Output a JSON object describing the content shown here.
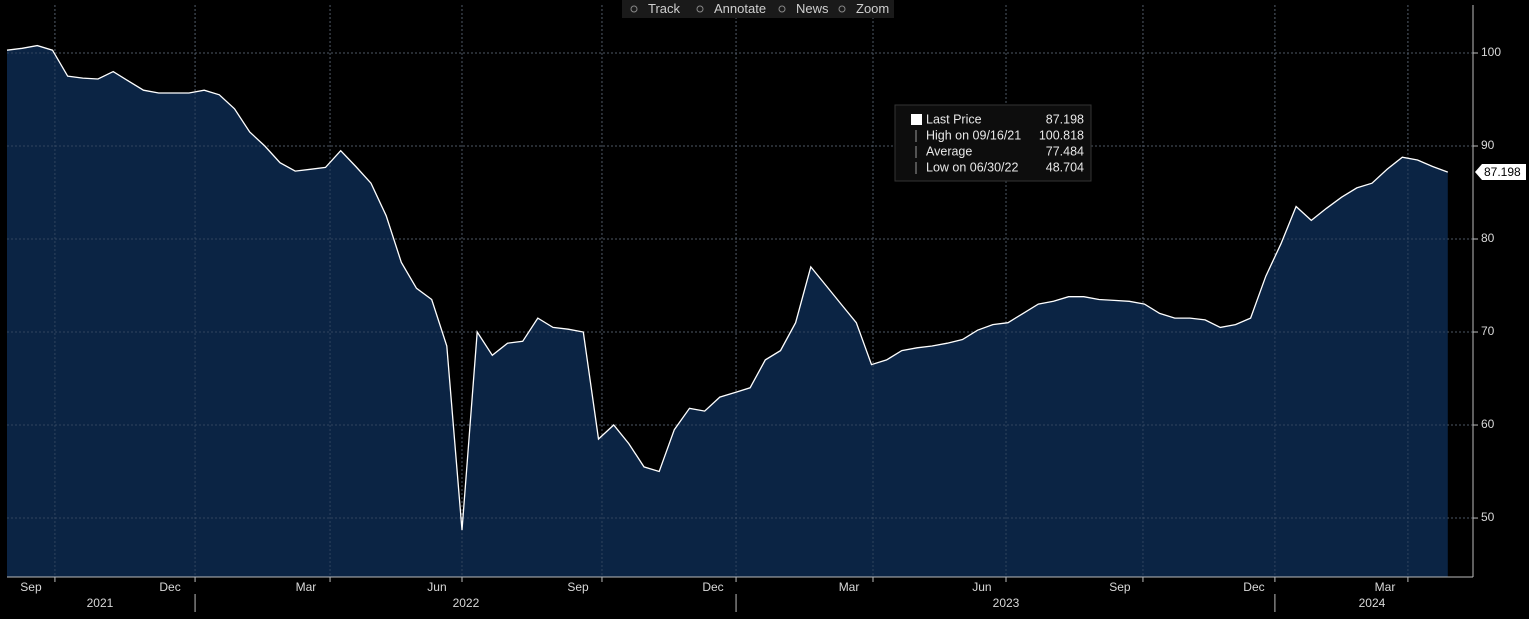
{
  "toolbar": [
    "Track",
    "Annotate",
    "News",
    "Zoom"
  ],
  "chart_data": {
    "type": "area",
    "series": [
      {
        "name": "Last Price",
        "color": "#ffffff",
        "fill": "#0b2444",
        "values": [
          100.3,
          100.5,
          100.8,
          100.3,
          97.5,
          97.3,
          97.2,
          98.0,
          97.0,
          96.0,
          95.7,
          95.7,
          95.7,
          96.0,
          95.5,
          94.0,
          91.5,
          90.0,
          88.2,
          87.3,
          87.5,
          87.7,
          89.5,
          87.8,
          86.0,
          82.5,
          77.5,
          74.7,
          73.5,
          68.5,
          48.7,
          70.0,
          67.5,
          68.8,
          69.0,
          71.5,
          70.5,
          70.3,
          70.0,
          58.5,
          60.0,
          58.0,
          55.5,
          55.0,
          59.5,
          61.8,
          61.5,
          63.0,
          63.5,
          64.0,
          67.0,
          68.0,
          71.0,
          77.0,
          75.0,
          73.0,
          71.0,
          66.5,
          67.0,
          68.0,
          68.3,
          68.5,
          68.8,
          69.2,
          70.2,
          70.8,
          71.0,
          72.0,
          73.0,
          73.3,
          73.8,
          73.8,
          73.5,
          73.4,
          73.3,
          73.0,
          72.0,
          71.5,
          71.5,
          71.3,
          70.5,
          70.8,
          71.5,
          76.0,
          79.5,
          83.5,
          82.0,
          83.3,
          84.5,
          85.5,
          86.0,
          87.5,
          88.8,
          88.5,
          87.8,
          87.198
        ]
      }
    ],
    "xlim": [
      0,
      95
    ],
    "xticks": [
      3.16,
      12.4,
      21.3,
      30,
      39.23,
      48.07,
      57.1,
      65.87,
      74.9,
      83.6,
      92.37
    ],
    "month_labels": [
      {
        "value": 1.58,
        "label": "Sep"
      },
      {
        "value": 10.75,
        "label": "Dec"
      },
      {
        "value": 19.71,
        "label": "Mar"
      },
      {
        "value": 28.35,
        "label": "Jun"
      },
      {
        "value": 37.65,
        "label": "Sep"
      },
      {
        "value": 46.55,
        "label": "Dec"
      },
      {
        "value": 55.52,
        "label": "Mar"
      },
      {
        "value": 64.28,
        "label": "Jun"
      },
      {
        "value": 73.38,
        "label": "Sep"
      },
      {
        "value": 82.22,
        "label": "Dec"
      },
      {
        "value": 90.86,
        "label": "Mar"
      }
    ],
    "year_labels": [
      {
        "value": 6.13,
        "label": "2021"
      },
      {
        "value": 30.26,
        "label": "2022"
      },
      {
        "value": 65.87,
        "label": "2023"
      },
      {
        "value": 90,
        "label": "2024"
      }
    ],
    "year_separators": [
      12.4,
      48.07,
      83.6
    ],
    "ylim": [
      43.66,
      105.16
    ],
    "yticks": [
      50,
      60,
      70,
      80,
      90,
      100
    ],
    "grid": true,
    "legend_stats": [
      {
        "label": "Last Price",
        "value": 87.198
      },
      {
        "label": "High on 09/16/21",
        "value": 100.818
      },
      {
        "label": "Average",
        "value": 77.484
      },
      {
        "label": "Low on 06/30/22",
        "value": 48.704
      }
    ]
  }
}
